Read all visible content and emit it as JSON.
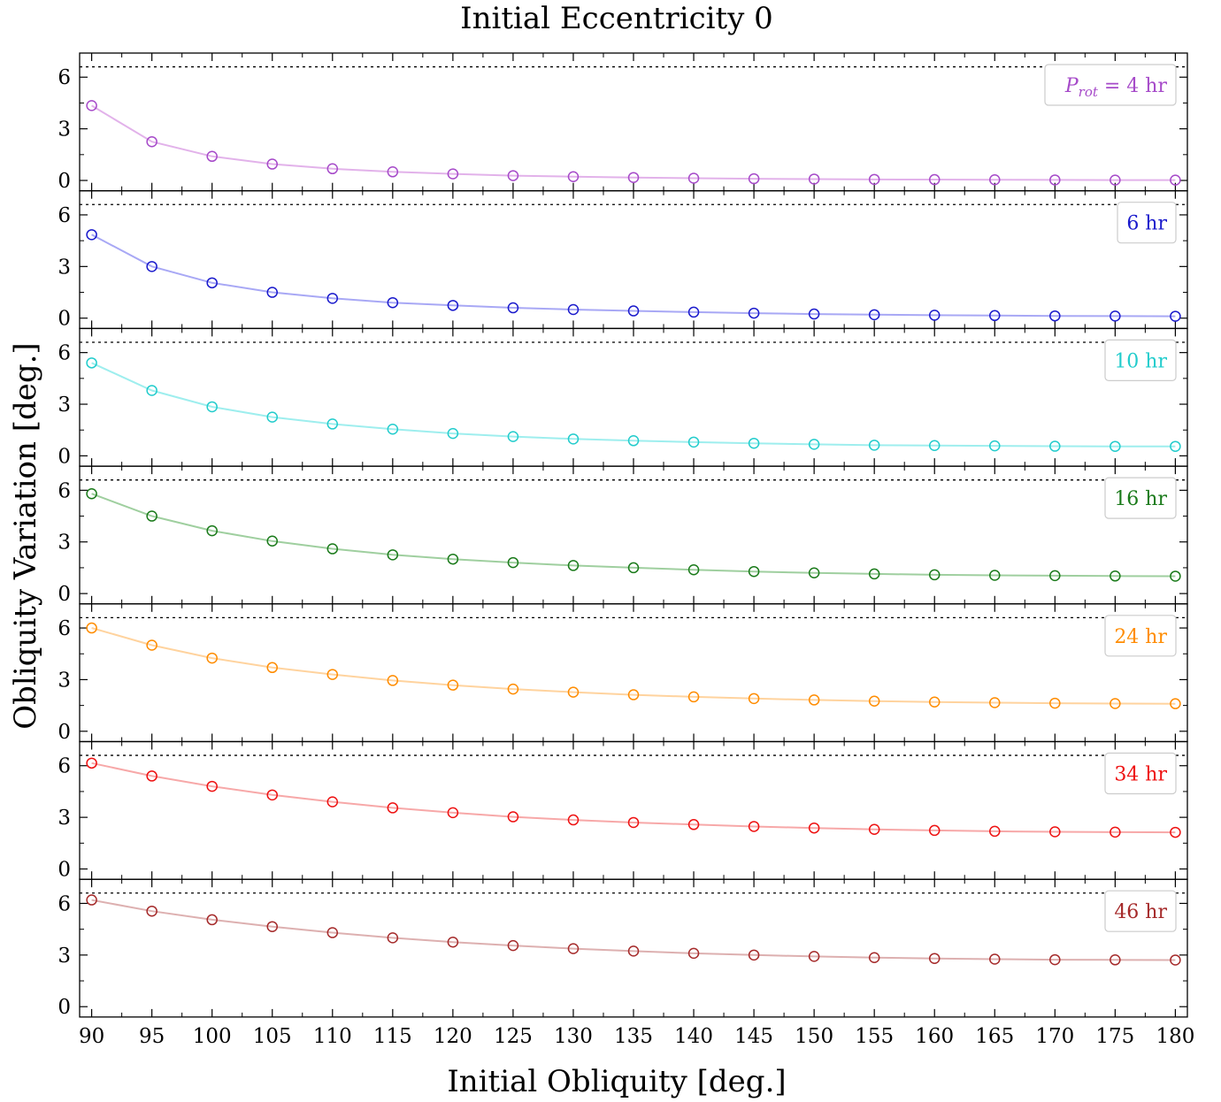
{
  "title": "Initial Eccentricity 0",
  "xlabel": "Initial Obliquity [deg.]",
  "ylabel": "Obliquity Variation [deg.]",
  "chart_data": {
    "type": "line",
    "title": "Initial Eccentricity 0",
    "xlabel": "Initial Obliquity [deg.]",
    "ylabel": "Obliquity Variation [deg.]",
    "x": [
      90,
      95,
      100,
      105,
      110,
      115,
      120,
      125,
      130,
      135,
      140,
      145,
      150,
      155,
      160,
      165,
      170,
      175,
      180
    ],
    "x_ticks": [
      "90",
      "95",
      "100",
      "105",
      "110",
      "115",
      "120",
      "125",
      "130",
      "135",
      "140",
      "145",
      "150",
      "155",
      "160",
      "165",
      "170",
      "175",
      "180"
    ],
    "xlim": [
      89,
      181
    ],
    "ylim": [
      -0.6,
      7.4
    ],
    "y_ticks": [
      "0",
      "3",
      "6"
    ],
    "reference_line": 6.6,
    "subplots": [
      {
        "label_prefix": "P",
        "label_subscript": "rot",
        "label": "= 4 hr",
        "color": "#a64ac9",
        "line_color": "#e2b2ea",
        "values": [
          4.35,
          2.25,
          1.4,
          0.95,
          0.68,
          0.5,
          0.38,
          0.28,
          0.22,
          0.17,
          0.13,
          0.1,
          0.08,
          0.06,
          0.05,
          0.04,
          0.03,
          0.02,
          0.02
        ]
      },
      {
        "label": "6 hr",
        "color": "#1a1acc",
        "line_color": "#a8a8f5",
        "values": [
          4.85,
          3.0,
          2.05,
          1.5,
          1.15,
          0.9,
          0.74,
          0.6,
          0.5,
          0.42,
          0.35,
          0.29,
          0.24,
          0.2,
          0.17,
          0.15,
          0.13,
          0.12,
          0.11
        ]
      },
      {
        "label": "10 hr",
        "color": "#22cccc",
        "line_color": "#9eeeee",
        "values": [
          5.4,
          3.8,
          2.85,
          2.25,
          1.85,
          1.55,
          1.3,
          1.12,
          0.98,
          0.88,
          0.8,
          0.73,
          0.67,
          0.62,
          0.6,
          0.58,
          0.56,
          0.55,
          0.55
        ]
      },
      {
        "label": "16 hr",
        "color": "#1a7a1a",
        "line_color": "#9fcf9f",
        "values": [
          5.8,
          4.5,
          3.65,
          3.05,
          2.6,
          2.25,
          2.0,
          1.8,
          1.63,
          1.5,
          1.38,
          1.28,
          1.2,
          1.14,
          1.09,
          1.06,
          1.04,
          1.02,
          1.01
        ]
      },
      {
        "label": "24 hr",
        "color": "#ff8c00",
        "line_color": "#ffd39e",
        "values": [
          6.0,
          5.0,
          4.25,
          3.7,
          3.3,
          2.95,
          2.68,
          2.45,
          2.27,
          2.12,
          2.0,
          1.9,
          1.82,
          1.75,
          1.7,
          1.66,
          1.63,
          1.61,
          1.6
        ]
      },
      {
        "label": "34 hr",
        "color": "#ee1111",
        "line_color": "#f7a8a8",
        "values": [
          6.15,
          5.4,
          4.8,
          4.3,
          3.9,
          3.55,
          3.27,
          3.03,
          2.85,
          2.7,
          2.58,
          2.47,
          2.38,
          2.3,
          2.24,
          2.19,
          2.16,
          2.14,
          2.13
        ]
      },
      {
        "label": "46 hr",
        "color": "#a52a2a",
        "line_color": "#ddb0b0",
        "values": [
          6.2,
          5.55,
          5.05,
          4.65,
          4.3,
          4.0,
          3.75,
          3.55,
          3.37,
          3.23,
          3.1,
          3.0,
          2.92,
          2.85,
          2.8,
          2.76,
          2.73,
          2.72,
          2.71
        ]
      }
    ]
  }
}
